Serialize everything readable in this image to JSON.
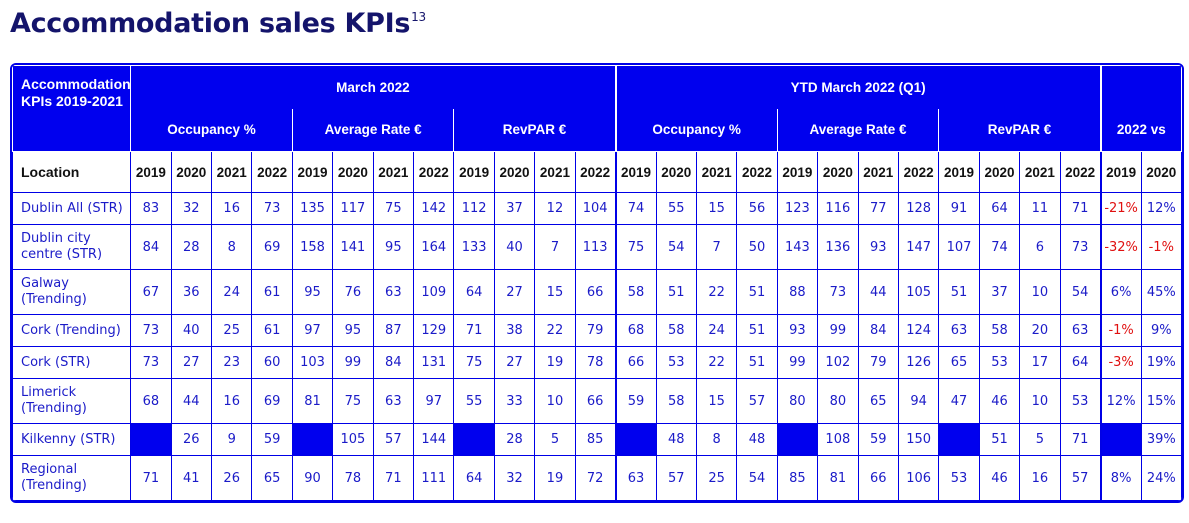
{
  "title": "Accommodation sales KPIs",
  "title_sup": "13",
  "corner_label": "Accommodation KPIs 2019-2021",
  "period_march": "March 2022",
  "period_ytd": "YTD March 2022 (Q1)",
  "metric_occupancy": "Occupancy %",
  "metric_rate": "Average Rate €",
  "metric_revpar": "RevPAR €",
  "vs_label": "2022 vs",
  "location_header": "Location",
  "years4": [
    "2019",
    "2020",
    "2021",
    "2022"
  ],
  "years_vs": [
    "2019",
    "2020"
  ],
  "rows": [
    {
      "location": "Dublin All (STR)",
      "values": [
        "83",
        "32",
        "16",
        "73",
        "135",
        "117",
        "75",
        "142",
        "112",
        "37",
        "12",
        "104",
        "74",
        "55",
        "15",
        "56",
        "123",
        "116",
        "77",
        "128",
        "91",
        "64",
        "11",
        "71",
        "-21%",
        "12%"
      ]
    },
    {
      "location": "Dublin city centre (STR)",
      "values": [
        "84",
        "28",
        "8",
        "69",
        "158",
        "141",
        "95",
        "164",
        "133",
        "40",
        "7",
        "113",
        "75",
        "54",
        "7",
        "50",
        "143",
        "136",
        "93",
        "147",
        "107",
        "74",
        "6",
        "73",
        "-32%",
        "-1%"
      ]
    },
    {
      "location": "Galway (Trending)",
      "values": [
        "67",
        "36",
        "24",
        "61",
        "95",
        "76",
        "63",
        "109",
        "64",
        "27",
        "15",
        "66",
        "58",
        "51",
        "22",
        "51",
        "88",
        "73",
        "44",
        "105",
        "51",
        "37",
        "10",
        "54",
        "6%",
        "45%"
      ]
    },
    {
      "location": "Cork (Trending)",
      "values": [
        "73",
        "40",
        "25",
        "61",
        "97",
        "95",
        "87",
        "129",
        "71",
        "38",
        "22",
        "79",
        "68",
        "58",
        "24",
        "51",
        "93",
        "99",
        "84",
        "124",
        "63",
        "58",
        "20",
        "63",
        "-1%",
        "9%"
      ]
    },
    {
      "location": "Cork (STR)",
      "values": [
        "73",
        "27",
        "23",
        "60",
        "103",
        "99",
        "84",
        "131",
        "75",
        "27",
        "19",
        "78",
        "66",
        "53",
        "22",
        "51",
        "99",
        "102",
        "79",
        "126",
        "65",
        "53",
        "17",
        "64",
        "-3%",
        "19%"
      ]
    },
    {
      "location": "Limerick (Trending)",
      "values": [
        "68",
        "44",
        "16",
        "69",
        "81",
        "75",
        "63",
        "97",
        "55",
        "33",
        "10",
        "66",
        "59",
        "58",
        "15",
        "57",
        "80",
        "80",
        "65",
        "94",
        "47",
        "46",
        "10",
        "53",
        "12%",
        "15%"
      ]
    },
    {
      "location": "Kilkenny (STR)",
      "values": [
        "",
        "26",
        "9",
        "59",
        "",
        "105",
        "57",
        "144",
        "",
        "28",
        "5",
        "85",
        "",
        "48",
        "8",
        "48",
        "",
        "108",
        "59",
        "150",
        "",
        "51",
        "5",
        "71",
        "",
        "39%"
      ]
    },
    {
      "location": "Regional (Trending)",
      "values": [
        "71",
        "41",
        "26",
        "65",
        "90",
        "78",
        "71",
        "111",
        "64",
        "32",
        "19",
        "72",
        "63",
        "57",
        "25",
        "54",
        "85",
        "81",
        "66",
        "106",
        "53",
        "46",
        "16",
        "57",
        "8%",
        "24%"
      ]
    }
  ]
}
